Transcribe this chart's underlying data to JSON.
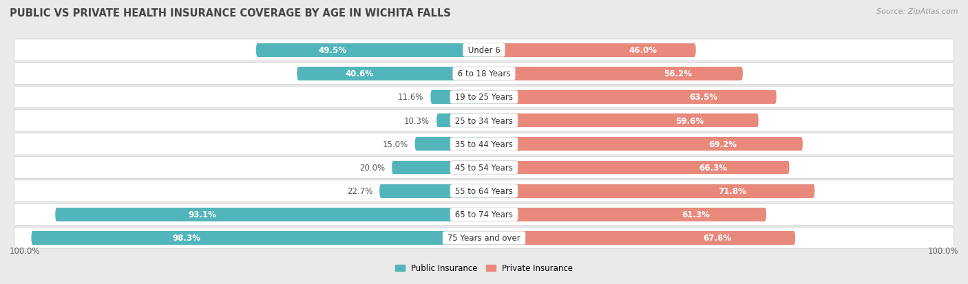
{
  "title": "PUBLIC VS PRIVATE HEALTH INSURANCE COVERAGE BY AGE IN WICHITA FALLS",
  "source": "Source: ZipAtlas.com",
  "categories": [
    "Under 6",
    "6 to 18 Years",
    "19 to 25 Years",
    "25 to 34 Years",
    "35 to 44 Years",
    "45 to 54 Years",
    "55 to 64 Years",
    "65 to 74 Years",
    "75 Years and over"
  ],
  "public_values": [
    49.5,
    40.6,
    11.6,
    10.3,
    15.0,
    20.0,
    22.7,
    93.1,
    98.3
  ],
  "private_values": [
    46.0,
    56.2,
    63.5,
    59.6,
    69.2,
    66.3,
    71.8,
    61.3,
    67.6
  ],
  "public_color": "#52b5bb",
  "private_color": "#e8897c",
  "bg_color": "#eaeaea",
  "row_bg_even": "#f5f5f5",
  "row_bg_odd": "#ebebeb",
  "axis_label_left": "100.0%",
  "axis_label_right": "100.0%",
  "legend_public": "Public Insurance",
  "legend_private": "Private Insurance",
  "title_fontsize": 10.5,
  "label_fontsize": 8.5,
  "category_fontsize": 8.5,
  "source_fontsize": 8,
  "xlim": 100
}
